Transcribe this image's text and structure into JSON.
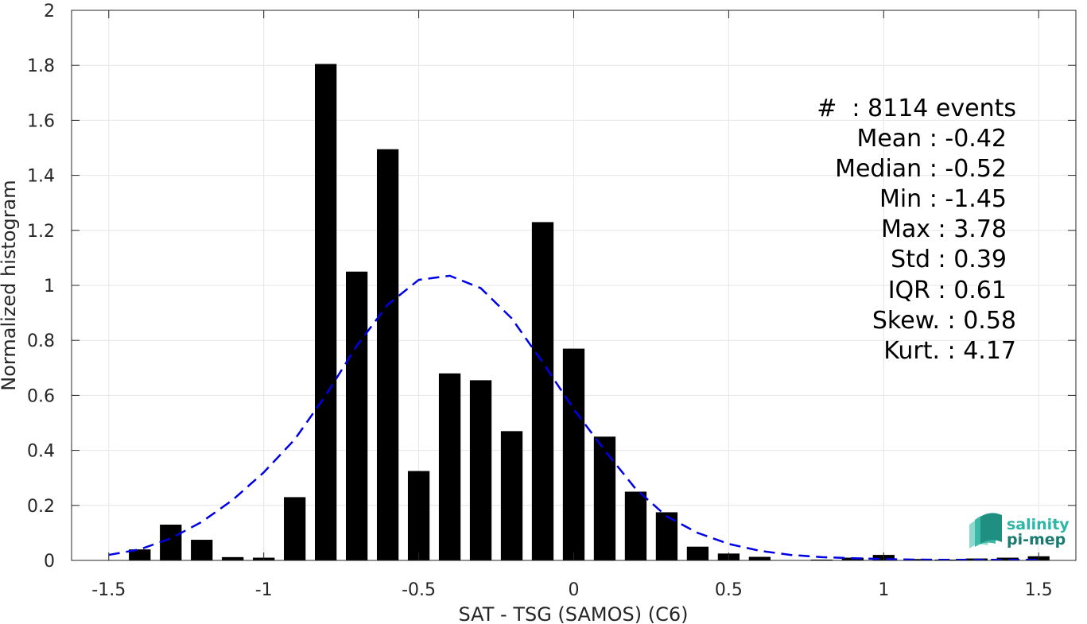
{
  "chart_data": {
    "type": "bar",
    "xlabel": "SAT - TSG (SAMOS) (C6)",
    "ylabel": "Normalized histogram",
    "xlim": [
      -1.62,
      1.62
    ],
    "ylim": [
      0,
      2
    ],
    "grid": true,
    "x_ticks": [
      -1.5,
      -1,
      -0.5,
      0,
      0.5,
      1,
      1.5
    ],
    "x_tick_labels": [
      "-1.5",
      "-1",
      "-0.5",
      "0",
      "0.5",
      "1",
      "1.5"
    ],
    "y_ticks": [
      0,
      0.2,
      0.4,
      0.6,
      0.8,
      1,
      1.2,
      1.4,
      1.6,
      1.8,
      2
    ],
    "y_tick_labels": [
      "0",
      "0.2",
      "0.4",
      "0.6",
      "0.8",
      "1",
      "1.2",
      "1.4",
      "1.6",
      "1.8",
      "2"
    ],
    "bar_width": 0.07,
    "series": [
      {
        "kind": "bar",
        "color": "#000000",
        "x": [
          -1.4,
          -1.3,
          -1.2,
          -1.1,
          -1.0,
          -0.9,
          -0.8,
          -0.7,
          -0.6,
          -0.5,
          -0.4,
          -0.3,
          -0.2,
          -0.1,
          0.0,
          0.1,
          0.2,
          0.3,
          0.4,
          0.5,
          0.6,
          0.7,
          0.8,
          0.9,
          1.0,
          1.1,
          1.2,
          1.3,
          1.4,
          1.5
        ],
        "values": [
          0.04,
          0.13,
          0.075,
          0.012,
          0.01,
          0.23,
          1.805,
          1.05,
          1.495,
          0.325,
          0.68,
          0.655,
          0.47,
          1.23,
          0.77,
          0.45,
          0.25,
          0.175,
          0.05,
          0.025,
          0.013,
          0.0,
          0.003,
          0.01,
          0.02,
          0.005,
          0.003,
          0.007,
          0.01,
          0.015
        ]
      },
      {
        "kind": "line",
        "style": "dashed",
        "color": "#0000e6",
        "x": [
          -1.5,
          -1.4,
          -1.3,
          -1.2,
          -1.1,
          -1.0,
          -0.9,
          -0.8,
          -0.7,
          -0.6,
          -0.5,
          -0.4,
          -0.3,
          -0.2,
          -0.1,
          0.0,
          0.1,
          0.2,
          0.3,
          0.4,
          0.5,
          0.6,
          0.7,
          0.8,
          0.9,
          1.0,
          1.1,
          1.2,
          1.3,
          1.4,
          1.5
        ],
        "values": [
          0.02,
          0.04,
          0.08,
          0.14,
          0.22,
          0.32,
          0.44,
          0.6,
          0.78,
          0.93,
          1.02,
          1.035,
          0.99,
          0.88,
          0.72,
          0.55,
          0.4,
          0.26,
          0.16,
          0.1,
          0.06,
          0.035,
          0.02,
          0.012,
          0.008,
          0.005,
          0.003,
          0.002,
          0.002,
          0.002,
          0.002
        ]
      }
    ]
  },
  "stats": {
    "lines": [
      "#  : 8114 events",
      "Mean : -0.42",
      "Median : -0.52",
      "Min : -1.45",
      "Max : 3.78",
      "Std : 0.39",
      "IQR : 0.61",
      "Skew. : 0.58",
      "Kurt. : 4.17"
    ]
  },
  "logo": {
    "line1": "salinity",
    "line2": "pi-mep",
    "color1": "#2bb6a5",
    "color2": "#1a7a70"
  },
  "colors": {
    "grid": "#e6e6e6",
    "axis": "#262626",
    "bars": "#000000",
    "fit_line": "#0000e6"
  }
}
